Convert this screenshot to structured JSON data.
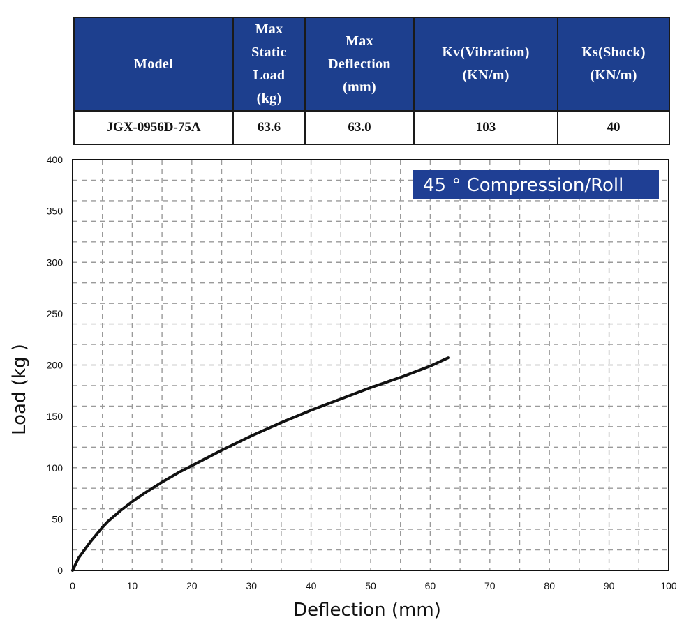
{
  "spec_table": {
    "headers": [
      "Model",
      "Max\nStatic\nLoad\n(kg)",
      "Max\nDeflection\n(mm)",
      "Kv(Vibration)\n(KN/m)",
      "Ks(Shock)\n(KN/m)"
    ],
    "row": [
      "JGX-0956D-75A",
      "63.6",
      "63.0",
      "103",
      "40"
    ]
  },
  "colors": {
    "header_bg": "#1d3f8e",
    "legend_bg": "#1f3f94",
    "curve": "#111111",
    "grid": "#9a9a9a"
  },
  "chart_data": {
    "type": "line",
    "xlabel": "Deflection (mm)",
    "ylabel": "Load (kg )",
    "xlim": [
      0,
      100
    ],
    "ylim": [
      0,
      400
    ],
    "xticks": [
      0,
      10,
      20,
      30,
      40,
      50,
      60,
      70,
      80,
      90,
      100
    ],
    "yticks": [
      0,
      50,
      100,
      150,
      200,
      250,
      300,
      350,
      400
    ],
    "grid": true,
    "grid_style": "dashed",
    "minor_grid_x_step": 5,
    "minor_grid_y_step": 20,
    "legend_placement": "top-right",
    "series": [
      {
        "name": "45 ° Compression/Roll",
        "x": [
          0,
          1,
          2,
          3,
          4,
          5,
          6,
          8,
          10,
          12,
          15,
          18,
          20,
          25,
          30,
          35,
          40,
          45,
          50,
          55,
          60,
          63
        ],
        "y": [
          0,
          12,
          20,
          28,
          35,
          42,
          48,
          58,
          67,
          75,
          86,
          96,
          102,
          117,
          131,
          144,
          156,
          167,
          178,
          188,
          199,
          207
        ]
      }
    ]
  }
}
